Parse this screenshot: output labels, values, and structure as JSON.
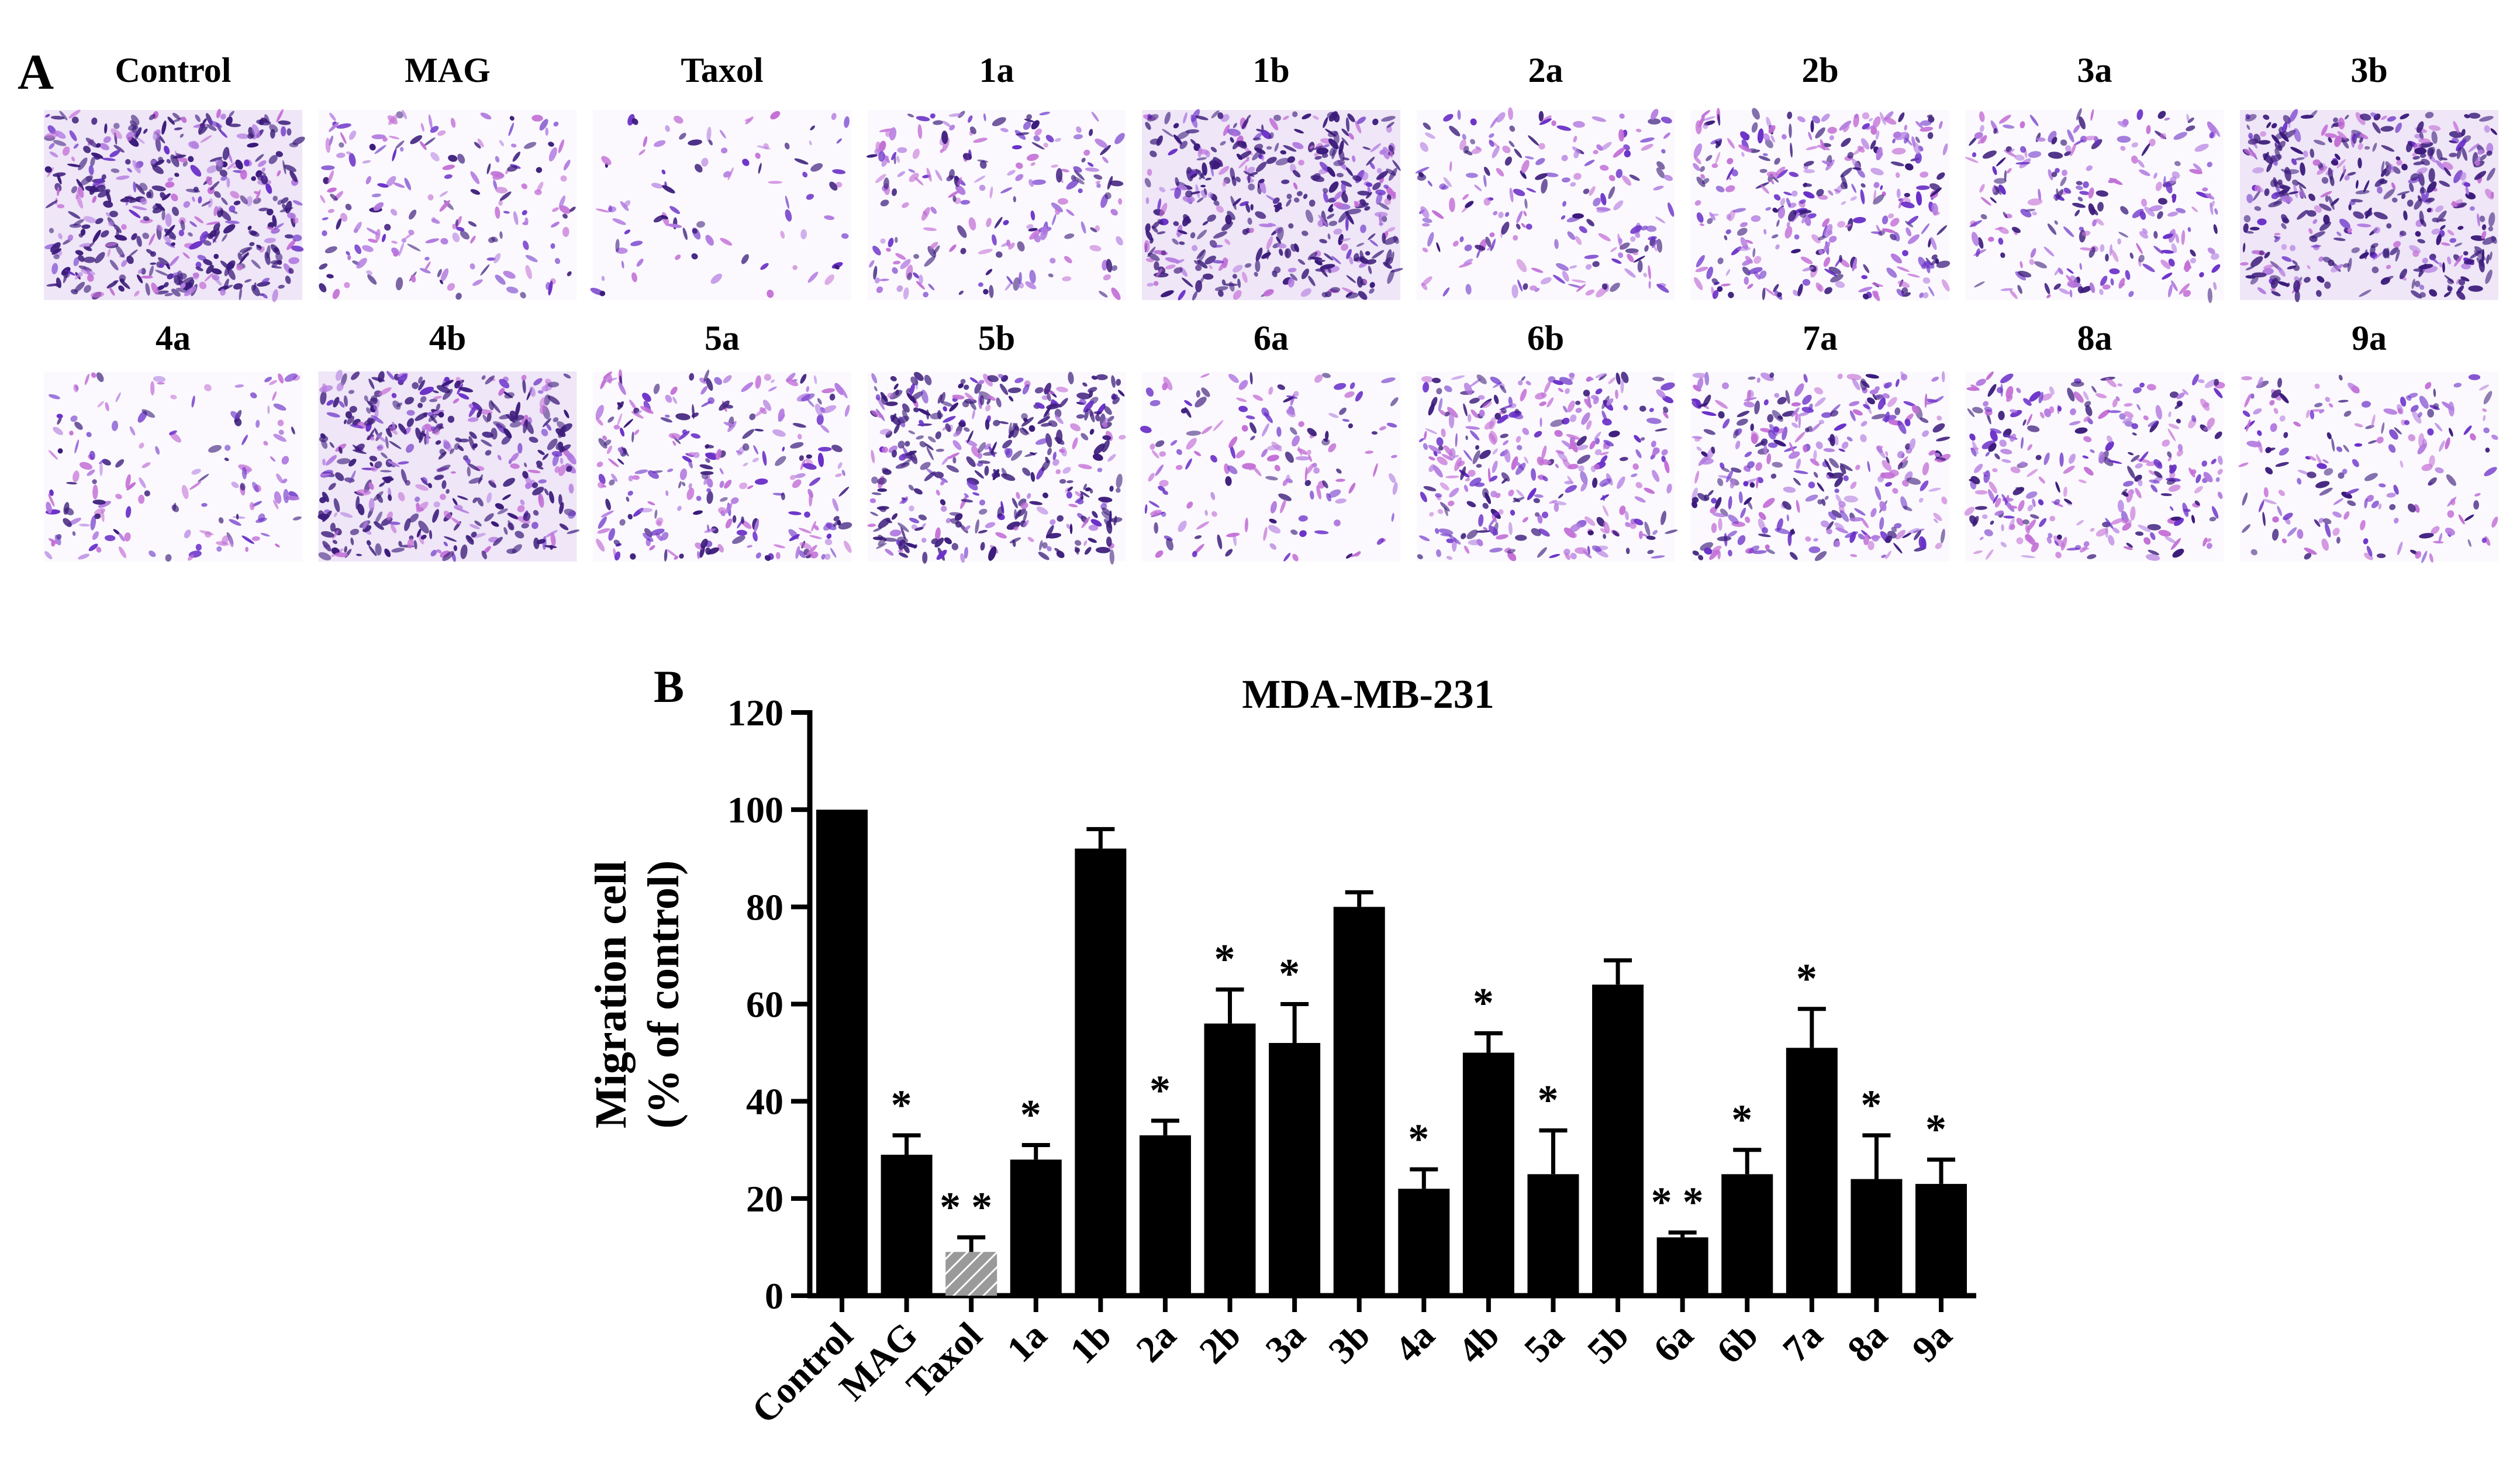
{
  "figure": {
    "panel_a_label": "A",
    "panel_b_label": "B",
    "panel_a_rows": [
      [
        "Control",
        "MAG",
        "Taxol",
        "1a",
        "1b",
        "2a",
        "2b",
        "3a",
        "3b"
      ],
      [
        "4a",
        "4b",
        "5a",
        "5b",
        "6a",
        "6b",
        "7a",
        "8a",
        "9a"
      ]
    ],
    "panel_a_densities": [
      [
        1.0,
        0.35,
        0.12,
        0.4,
        0.95,
        0.4,
        0.7,
        0.5,
        0.9
      ],
      [
        0.28,
        0.9,
        0.55,
        0.85,
        0.3,
        0.7,
        0.72,
        0.6,
        0.35
      ]
    ],
    "stain_colors": {
      "dark": "#3a1a7a",
      "mid": "#6a30c8",
      "light": "#b27be0",
      "pink": "#c36fd6"
    }
  },
  "chart_data": {
    "type": "bar",
    "title": "MDA-MB-231",
    "ylabel_line1": "Migration cell",
    "ylabel_line2": "(% of control)",
    "xlabel": "",
    "ylim": [
      0,
      120
    ],
    "yticks": [
      0,
      20,
      40,
      60,
      80,
      100,
      120
    ],
    "categories": [
      "Control",
      "MAG",
      "Taxol",
      "1a",
      "1b",
      "2a",
      "2b",
      "3a",
      "3b",
      "4a",
      "4b",
      "5a",
      "5b",
      "6a",
      "6b",
      "7a",
      "8a",
      "9a"
    ],
    "values": [
      100,
      29,
      9,
      28,
      92,
      33,
      56,
      52,
      80,
      22,
      50,
      25,
      64,
      12,
      25,
      51,
      24,
      23
    ],
    "errors": [
      0,
      4,
      3,
      3,
      4,
      3,
      7,
      8,
      3,
      4,
      4,
      9,
      5,
      1,
      5,
      8,
      9,
      5
    ],
    "significance": [
      "",
      "*",
      "**",
      "*",
      "",
      "*",
      "*",
      "*",
      "",
      "*",
      "*",
      "*",
      "",
      "**",
      "*",
      "*",
      "*",
      "*"
    ],
    "highlight_index": 2,
    "bar_color": "#000000",
    "highlight_color": "#9a9a9a",
    "grid": false,
    "legend": "none"
  }
}
